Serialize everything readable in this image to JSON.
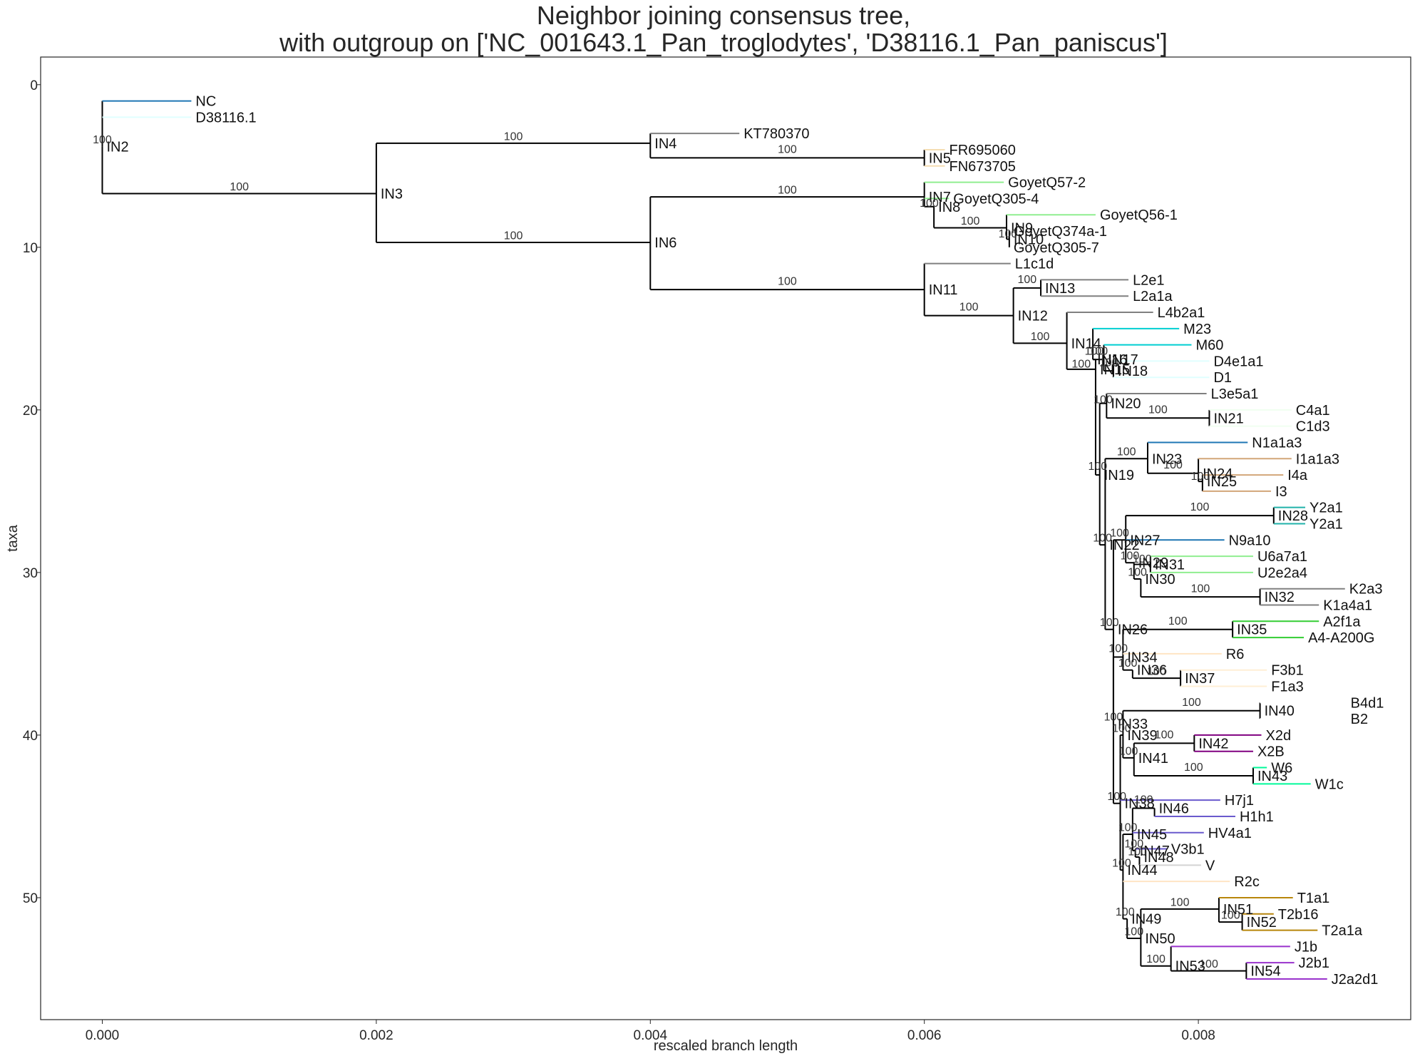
{
  "chart_data": {
    "type": "tree",
    "title_lines": [
      "Neighbor joining consensus tree,",
      "with outgroup on ['NC_001643.1_Pan_troglodytes', 'D38116.1_Pan_paniscus']"
    ],
    "xlabel": "rescaled branch length",
    "ylabel": "taxa",
    "xlim": [
      -0.00045,
      0.00955
    ],
    "ylim": [
      57.5,
      -1.7
    ],
    "x_ticks": [
      0,
      0.002,
      0.004,
      0.006,
      0.008
    ],
    "x_tick_labels": [
      "0.000",
      "0.002",
      "0.004",
      "0.006",
      "0.008"
    ],
    "y_ticks": [
      0,
      10,
      20,
      30,
      40,
      50
    ],
    "y_tick_labels": [
      "0",
      "10",
      "20",
      "30",
      "40",
      "50"
    ],
    "leaves": [
      {
        "name": "NC",
        "px": "IN2",
        "x": 0.00065,
        "y": 1,
        "color": "#1f77b4"
      },
      {
        "name": "D38116.1",
        "px": "IN2",
        "x": 0.00065,
        "y": 2,
        "color": "#e0ffff"
      },
      {
        "name": "KT780370",
        "px": "IN4",
        "x": 0.00465,
        "y": 3,
        "color": "#808080"
      },
      {
        "name": "FR695060",
        "px": "IN5",
        "x": 0.00615,
        "y": 4,
        "color": "#f5deb3"
      },
      {
        "name": "FN673705",
        "px": "IN5",
        "x": 0.00615,
        "y": 5,
        "color": "#f5deb3"
      },
      {
        "name": "GoyetQ57-2",
        "px": "IN7",
        "x": 0.00658,
        "y": 6,
        "color": "#90ee90"
      },
      {
        "name": "GoyetQ305-4",
        "px": "IN7",
        "x": 0.00618,
        "y": 7,
        "color": "#90ee90"
      },
      {
        "name": "GoyetQ56-1",
        "px": "IN9",
        "x": 0.00725,
        "y": 8,
        "color": "#90ee90"
      },
      {
        "name": "GoyetQ374a-1",
        "px": "IN10",
        "x": 0.00662,
        "y": 9,
        "color": "#90ee90"
      },
      {
        "name": "GoyetQ305-7",
        "px": "IN10",
        "x": 0.00662,
        "y": 10,
        "color": "#90ee90"
      },
      {
        "name": "L1c1d",
        "px": "IN11",
        "x": 0.00663,
        "y": 11,
        "color": "#808080"
      },
      {
        "name": "L2e1",
        "px": "IN13",
        "x": 0.00749,
        "y": 12,
        "color": "#808080"
      },
      {
        "name": "L2a1a",
        "px": "IN13",
        "x": 0.00749,
        "y": 13,
        "color": "#808080"
      },
      {
        "name": "L4b2a1",
        "px": "IN14",
        "x": 0.00767,
        "y": 14,
        "color": "#808080"
      },
      {
        "name": "M23",
        "px": "IN16",
        "x": 0.00786,
        "y": 15,
        "color": "#00ced1"
      },
      {
        "name": "M60",
        "px": "IN17",
        "x": 0.00795,
        "y": 16,
        "color": "#00ced1"
      },
      {
        "name": "D4e1a1",
        "px": "IN18",
        "x": 0.00808,
        "y": 17,
        "color": "#e0ffff"
      },
      {
        "name": "D1",
        "px": "IN18",
        "x": 0.00808,
        "y": 18,
        "color": "#e0ffff"
      },
      {
        "name": "L3e5a1",
        "px": "IN20",
        "x": 0.00806,
        "y": 19,
        "color": "#808080"
      },
      {
        "name": "C4a1",
        "px": "IN21",
        "x": 0.00868,
        "y": 20,
        "color": "#f0fff0"
      },
      {
        "name": "C1d3",
        "px": "IN21",
        "x": 0.00868,
        "y": 21,
        "color": "#f0fff0"
      },
      {
        "name": "N1a1a3",
        "px": "IN23",
        "x": 0.00836,
        "y": 22,
        "color": "#1f77b4"
      },
      {
        "name": "I1a1a3",
        "px": "IN24",
        "x": 0.00868,
        "y": 23,
        "color": "#d2a679"
      },
      {
        "name": "I4a",
        "px": "IN25",
        "x": 0.00862,
        "y": 24,
        "color": "#d2a679"
      },
      {
        "name": "I3",
        "px": "IN25",
        "x": 0.00853,
        "y": 25,
        "color": "#d2a679"
      },
      {
        "name": "Y2a1",
        "px": "IN28",
        "x": 0.00878,
        "y": 26,
        "color": "#20b2aa"
      },
      {
        "name": "Y2a1",
        "px": "IN28",
        "x": 0.00878,
        "y": 27,
        "color": "#20b2aa"
      },
      {
        "name": "N9a10",
        "px": "IN27",
        "x": 0.00819,
        "y": 28,
        "color": "#1f77b4"
      },
      {
        "name": "U6a7a1",
        "px": "IN31",
        "x": 0.0084,
        "y": 29,
        "color": "#90ee90"
      },
      {
        "name": "U2e2a4",
        "px": "IN31",
        "x": 0.0084,
        "y": 30,
        "color": "#90ee90"
      },
      {
        "name": "K2a3",
        "px": "IN32",
        "x": 0.00907,
        "y": 31,
        "color": "#808080"
      },
      {
        "name": "K1a4a1",
        "px": "IN32",
        "x": 0.00888,
        "y": 32,
        "color": "#808080"
      },
      {
        "name": "A2f1a",
        "px": "IN35",
        "x": 0.00888,
        "y": 33,
        "color": "#32cd32"
      },
      {
        "name": "A4-A200G",
        "px": "IN35",
        "x": 0.00877,
        "y": 34,
        "color": "#32cd32"
      },
      {
        "name": "R6",
        "px": "IN34",
        "x": 0.00817,
        "y": 35,
        "color": "#ffe4c4"
      },
      {
        "name": "F3b1",
        "px": "IN37",
        "x": 0.0085,
        "y": 36,
        "color": "#ffefd5"
      },
      {
        "name": "F1a3",
        "px": "IN37",
        "x": 0.0085,
        "y": 37,
        "color": "#ffefd5"
      },
      {
        "name": "B4d1",
        "px": "IN40",
        "x": 0.00908,
        "y": 38,
        "color": "#ffffff"
      },
      {
        "name": "B2",
        "px": "IN40",
        "x": 0.00908,
        "y": 39,
        "color": "#ffffff"
      },
      {
        "name": "X2d",
        "px": "IN42",
        "x": 0.00846,
        "y": 40,
        "color": "#800080"
      },
      {
        "name": "X2B",
        "px": "IN42",
        "x": 0.0084,
        "y": 41,
        "color": "#800080"
      },
      {
        "name": "W6",
        "px": "IN43",
        "x": 0.0085,
        "y": 42,
        "color": "#00fa9a"
      },
      {
        "name": "W1c",
        "px": "IN43",
        "x": 0.00882,
        "y": 43,
        "color": "#00fa9a"
      },
      {
        "name": "H7j1",
        "px": "IN38",
        "x": 0.00816,
        "y": 44,
        "color": "#6a5acd"
      },
      {
        "name": "H1h1",
        "px": "IN46",
        "x": 0.00827,
        "y": 45,
        "color": "#6a5acd"
      },
      {
        "name": "HV4a1",
        "px": "IN45",
        "x": 0.00804,
        "y": 46,
        "color": "#6a5acd"
      },
      {
        "name": "V3b1",
        "px": "IN47",
        "x": 0.00777,
        "y": 47,
        "color": "#6a5acd"
      },
      {
        "name": "V",
        "px": "IN48",
        "x": 0.00802,
        "y": 48,
        "color": "#d3d3d3"
      },
      {
        "name": "R2c",
        "px": "IN44",
        "x": 0.00823,
        "y": 49,
        "color": "#ffe4c4"
      },
      {
        "name": "T1a1",
        "px": "IN51",
        "x": 0.00869,
        "y": 50,
        "color": "#b8860b"
      },
      {
        "name": "T2b16",
        "px": "IN52",
        "x": 0.00855,
        "y": 51,
        "color": "#b8860b"
      },
      {
        "name": "T2a1a",
        "px": "IN52",
        "x": 0.00887,
        "y": 52,
        "color": "#b8860b"
      },
      {
        "name": "J1b",
        "px": "IN53",
        "x": 0.00867,
        "y": 53,
        "color": "#9932cc"
      },
      {
        "name": "J2b1",
        "px": "IN54",
        "x": 0.0087,
        "y": 54,
        "color": "#9932cc"
      },
      {
        "name": "J2a2d1",
        "px": "IN54",
        "x": 0.00894,
        "y": 55,
        "color": "#9932cc"
      }
    ],
    "internal_nodes": [
      {
        "name": "IN2",
        "x": 0,
        "y": 3.8,
        "parent": "IN1",
        "conf": "100",
        "cy": 3.6
      },
      {
        "name": "IN3",
        "x": 0.002,
        "y": 6.7,
        "parent": "IN1",
        "conf": "100",
        "cy": 6.5
      },
      {
        "name": "IN4",
        "x": 0.004,
        "y": 3.6,
        "parent": "IN3",
        "conf": "100",
        "cy": 3.4
      },
      {
        "name": "IN5",
        "x": 0.006,
        "y": 4.5,
        "parent": "IN4",
        "conf": "100",
        "cy": 4.2
      },
      {
        "name": "IN6",
        "x": 0.004,
        "y": 9.7,
        "parent": "IN3",
        "conf": "100",
        "cy": 9.5
      },
      {
        "name": "IN7",
        "x": 0.006,
        "y": 6.9,
        "parent": "IN6",
        "conf": "100",
        "cy": 6.7
      },
      {
        "name": "IN8",
        "x": 0.00607,
        "y": 7.5,
        "parent": "IN7",
        "conf": "100",
        "cy": 7.5
      },
      {
        "name": "IN9",
        "x": 0.0066,
        "y": 8.8,
        "parent": "IN8",
        "conf": "100",
        "cy": 8.6
      },
      {
        "name": "IN10",
        "x": 0.00662,
        "y": 9.5,
        "parent": "IN9",
        "conf": "100",
        "cy": 9.4
      },
      {
        "name": "IN11",
        "x": 0.006,
        "y": 12.6,
        "parent": "IN6",
        "conf": "100",
        "cy": 12.3
      },
      {
        "name": "IN12",
        "x": 0.00665,
        "y": 14.2,
        "parent": "IN11",
        "conf": "100",
        "cy": 13.9
      },
      {
        "name": "IN13",
        "x": 0.00685,
        "y": 12.5,
        "parent": "IN12",
        "conf": "100",
        "cy": 12.2
      },
      {
        "name": "IN14",
        "x": 0.00704,
        "y": 15.9,
        "parent": "IN12",
        "conf": "100",
        "cy": 15.7
      },
      {
        "name": "IN15",
        "x": 0.00725,
        "y": 17.5,
        "parent": "IN14",
        "conf": "100",
        "cy": 17.4
      },
      {
        "name": "IN16",
        "x": 0.00723,
        "y": 16.9,
        "parent": "IN15",
        "conf": "100",
        "cy": 16.6
      },
      {
        "name": "IN17",
        "x": 0.00731,
        "y": 16.9,
        "parent": "IN16",
        "conf": "100",
        "cy": 16.6
      },
      {
        "name": "IN18",
        "x": 0.00738,
        "y": 17.6,
        "parent": "IN17",
        "conf": "100",
        "cy": 17.3
      },
      {
        "name": "IN19",
        "x": 0.00728,
        "y": 24.0,
        "parent": "IN15",
        "conf": "100",
        "cy": 23.7
      },
      {
        "name": "IN20",
        "x": 0.00733,
        "y": 19.6,
        "parent": "IN19",
        "conf": "100",
        "cy": 19.6
      },
      {
        "name": "IN21",
        "x": 0.00808,
        "y": 20.5,
        "parent": "IN20",
        "conf": "100",
        "cy": 20.2
      },
      {
        "name": "IN22",
        "x": 0.00732,
        "y": 28.3,
        "parent": "IN19",
        "conf": "100",
        "cy": 28.1
      },
      {
        "name": "IN23",
        "x": 0.00763,
        "y": 23.0,
        "parent": "IN22",
        "conf": "100",
        "cy": 22.8
      },
      {
        "name": "IN24",
        "x": 0.008,
        "y": 23.9,
        "parent": "IN23",
        "conf": "100",
        "cy": 23.6
      },
      {
        "name": "IN25",
        "x": 0.00803,
        "y": 24.4,
        "parent": "IN24",
        "conf": "100",
        "cy": 24.3
      },
      {
        "name": "IN26",
        "x": 0.00738,
        "y": 33.5,
        "parent": "IN22",
        "conf": "100",
        "cy": 33.3
      },
      {
        "name": "IN27",
        "x": 0.00747,
        "y": 28.0,
        "parent": "IN26",
        "conf": "100",
        "cy": 27.8
      },
      {
        "name": "IN28",
        "x": 0.00855,
        "y": 26.5,
        "parent": "IN27",
        "conf": "100",
        "cy": 26.2
      },
      {
        "name": "IN29",
        "x": 0.00753,
        "y": 29.4,
        "parent": "IN27",
        "conf": "100",
        "cy": 29.2
      },
      {
        "name": "IN30",
        "x": 0.00758,
        "y": 30.4,
        "parent": "IN29",
        "conf": "100",
        "cy": 30.2
      },
      {
        "name": "IN31",
        "x": 0.00765,
        "y": 29.5,
        "parent": "IN29",
        "conf": "100",
        "cy": 29.4
      },
      {
        "name": "IN32",
        "x": 0.00845,
        "y": 31.5,
        "parent": "IN30",
        "conf": "100",
        "cy": 31.2
      },
      {
        "name": "IN33",
        "x": 0.00738,
        "y": 39.3,
        "parent": "IN26",
        "conf": "100",
        "cy": 39.1
      },
      {
        "name": "IN34",
        "x": 0.00745,
        "y": 35.2,
        "parent": "IN33",
        "conf": "100",
        "cy": 34.9
      },
      {
        "name": "IN35",
        "x": 0.00825,
        "y": 33.5,
        "parent": "IN34",
        "conf": "100",
        "cy": 33.2
      },
      {
        "name": "IN36",
        "x": 0.00752,
        "y": 36.0,
        "parent": "IN34",
        "conf": "100",
        "cy": 35.8
      },
      {
        "name": "IN37",
        "x": 0.00787,
        "y": 36.5,
        "parent": "IN36",
        "conf": "100",
        "cy": 36.3
      },
      {
        "name": "IN38",
        "x": 0.00743,
        "y": 44.2,
        "parent": "IN33",
        "conf": "100",
        "cy": 44.0
      },
      {
        "name": "IN39",
        "x": 0.00745,
        "y": 40.0,
        "parent": "IN38",
        "conf": "100",
        "cy": 39.8
      },
      {
        "name": "IN40",
        "x": 0.00845,
        "y": 38.5,
        "parent": "IN39",
        "conf": "100",
        "cy": 38.2
      },
      {
        "name": "IN41",
        "x": 0.00753,
        "y": 41.4,
        "parent": "IN39",
        "conf": "100",
        "cy": 41.2
      },
      {
        "name": "IN42",
        "x": 0.00797,
        "y": 40.5,
        "parent": "IN41",
        "conf": "100",
        "cy": 40.2
      },
      {
        "name": "IN43",
        "x": 0.0084,
        "y": 42.5,
        "parent": "IN41",
        "conf": "100",
        "cy": 42.2
      },
      {
        "name": "IN44",
        "x": 0.00745,
        "y": 48.3,
        "parent": "IN38",
        "conf": "100",
        "cy": 48.1
      },
      {
        "name": "IN45",
        "x": 0.00752,
        "y": 46.1,
        "parent": "IN44",
        "conf": "100",
        "cy": 45.9
      },
      {
        "name": "IN46",
        "x": 0.00768,
        "y": 44.5,
        "parent": "IN45",
        "conf": "100",
        "cy": 44.2
      },
      {
        "name": "IN47",
        "x": 0.00754,
        "y": 47.1,
        "parent": "IN45",
        "conf": "100",
        "cy": 46.9
      },
      {
        "name": "IN48",
        "x": 0.00757,
        "y": 47.5,
        "parent": "IN47",
        "conf": "100",
        "cy": 47.4
      },
      {
        "name": "IN49",
        "x": 0.00748,
        "y": 51.3,
        "parent": "IN44",
        "conf": "100",
        "cy": 51.1
      },
      {
        "name": "IN50",
        "x": 0.00758,
        "y": 52.5,
        "parent": "IN49",
        "conf": "100",
        "cy": 52.3
      },
      {
        "name": "IN51",
        "x": 0.00815,
        "y": 50.7,
        "parent": "IN50",
        "conf": "100",
        "cy": 50.5
      },
      {
        "name": "IN52",
        "x": 0.00832,
        "y": 51.5,
        "parent": "IN51",
        "conf": "100",
        "cy": 51.3
      },
      {
        "name": "IN53",
        "x": 0.0078,
        "y": 54.2,
        "parent": "IN50",
        "conf": "100",
        "cy": 54.0
      },
      {
        "name": "IN54",
        "x": 0.00835,
        "y": 54.5,
        "parent": "IN53",
        "conf": "100",
        "cy": 54.3
      }
    ]
  }
}
